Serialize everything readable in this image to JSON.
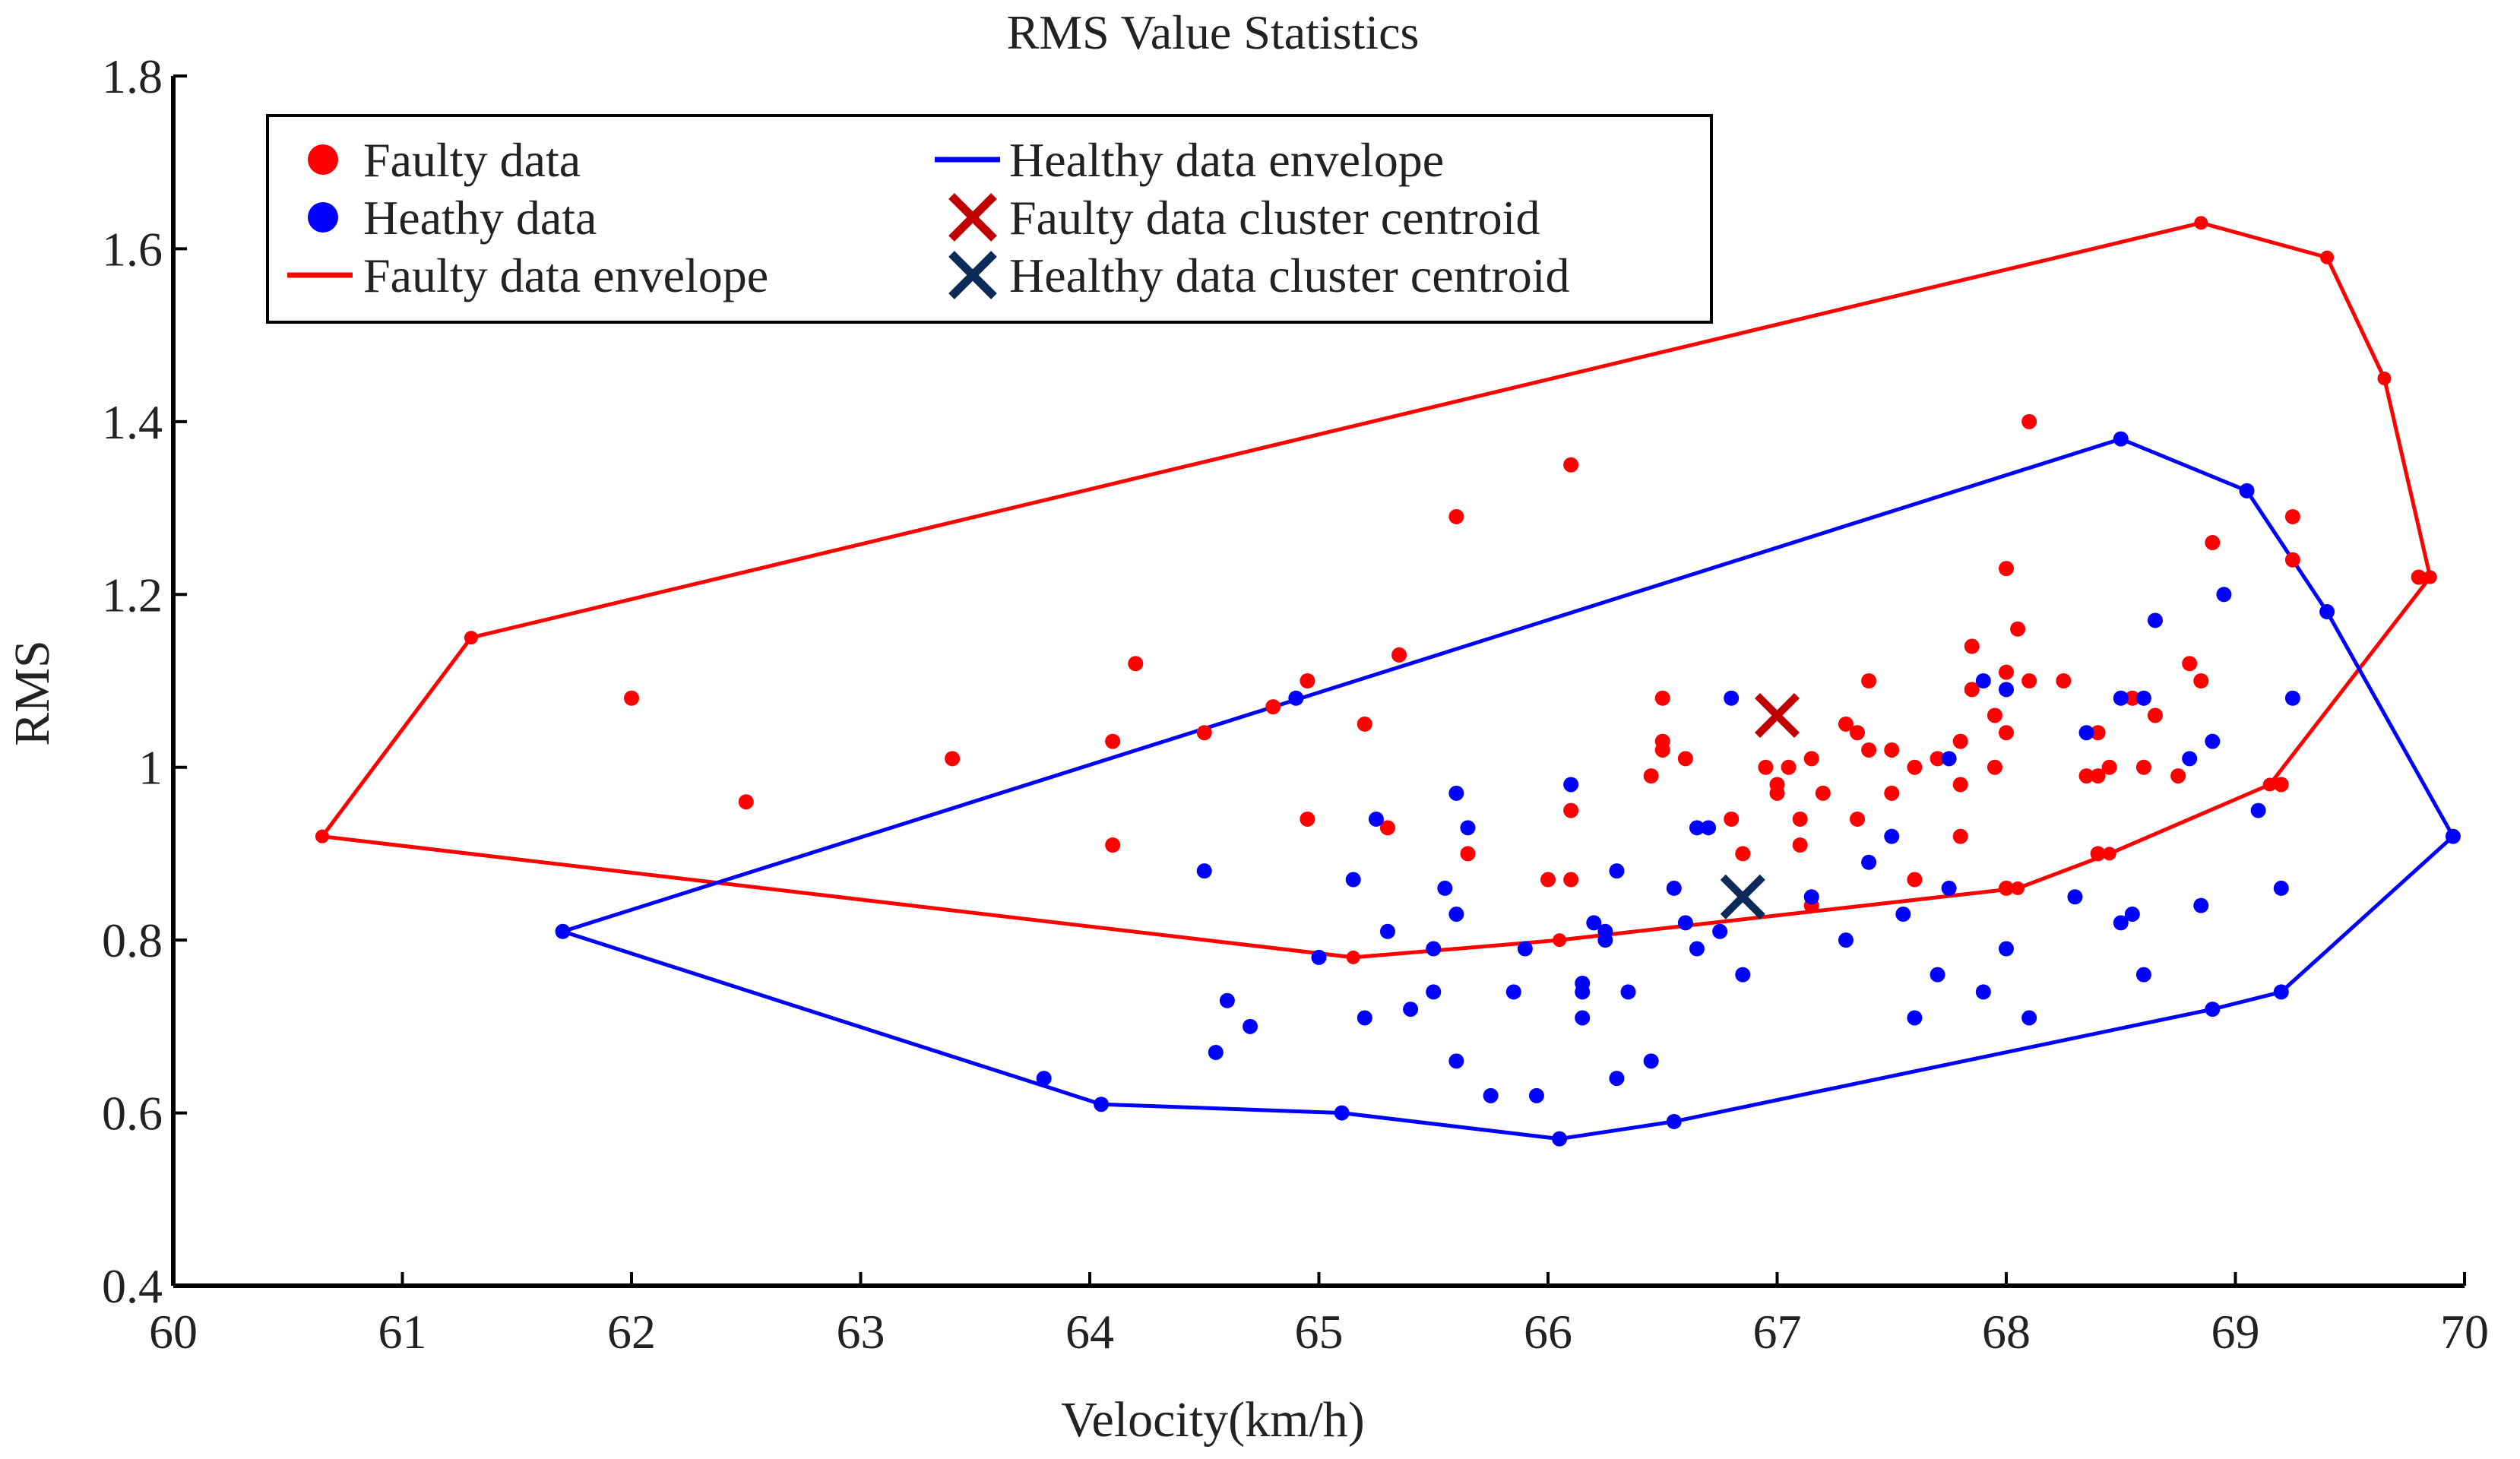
{
  "chart_data": {
    "type": "scatter",
    "title": "RMS Value Statistics",
    "xlabel": "Velocity(km/h)",
    "ylabel": "RMS",
    "xlim": [
      60,
      70
    ],
    "ylim": [
      0.4,
      1.8
    ],
    "xticks": [
      60,
      61,
      62,
      63,
      64,
      65,
      66,
      67,
      68,
      69,
      70
    ],
    "xtick_labels": [
      "60",
      "61",
      "62",
      "63",
      "64",
      "65",
      "66",
      "67",
      "68",
      "69",
      "70"
    ],
    "yticks": [
      0.4,
      0.6,
      0.8,
      1.0,
      1.2,
      1.4,
      1.6,
      1.8
    ],
    "ytick_labels": [
      "0.4",
      "0.6",
      "0.8",
      "1",
      "1.2",
      "1.4",
      "1.6",
      "1.8"
    ],
    "grid": false,
    "legend_position": "top-left",
    "legend": [
      {
        "label": "Faulty data",
        "kind": "dot",
        "color": "#ff0000"
      },
      {
        "label": "Heathy data",
        "kind": "dot",
        "color": "#0000ff"
      },
      {
        "label": "Faulty data envelope",
        "kind": "line",
        "color": "#ff0000"
      },
      {
        "label": "Healthy data envelope",
        "kind": "line",
        "color": "#0000ff"
      },
      {
        "label": "Faulty data cluster centroid",
        "kind": "cross",
        "color": "#c00000"
      },
      {
        "label": "Healthy data cluster centroid",
        "kind": "cross",
        "color": "#0d2a5a"
      }
    ],
    "series": [
      {
        "name": "Faulty data",
        "kind": "scatter",
        "color": "#ff0000",
        "points": [
          [
            62.0,
            1.08
          ],
          [
            62.5,
            0.96
          ],
          [
            63.4,
            1.01
          ],
          [
            64.1,
            1.03
          ],
          [
            64.1,
            0.91
          ],
          [
            64.2,
            1.12
          ],
          [
            64.5,
            1.04
          ],
          [
            64.8,
            1.07
          ],
          [
            64.95,
            1.1
          ],
          [
            64.95,
            0.94
          ],
          [
            65.2,
            1.05
          ],
          [
            65.3,
            0.93
          ],
          [
            65.35,
            1.13
          ],
          [
            65.6,
            1.29
          ],
          [
            65.65,
            0.9
          ],
          [
            66.1,
            1.35
          ],
          [
            66.1,
            0.87
          ],
          [
            66.1,
            0.95
          ],
          [
            66.45,
            0.99
          ],
          [
            66.5,
            1.02
          ],
          [
            66.5,
            1.08
          ],
          [
            66.5,
            1.03
          ],
          [
            66.6,
            1.01
          ],
          [
            66.8,
            0.94
          ],
          [
            66.85,
            0.9
          ],
          [
            66.95,
            1.0
          ],
          [
            67.0,
            0.98
          ],
          [
            67.0,
            0.97
          ],
          [
            67.05,
            1.0
          ],
          [
            67.1,
            0.94
          ],
          [
            67.1,
            0.91
          ],
          [
            67.15,
            1.01
          ],
          [
            67.15,
            0.84
          ],
          [
            67.2,
            0.97
          ],
          [
            67.3,
            1.05
          ],
          [
            67.35,
            1.04
          ],
          [
            67.4,
            1.1
          ],
          [
            67.4,
            1.02
          ],
          [
            67.35,
            0.94
          ],
          [
            67.5,
            1.02
          ],
          [
            67.5,
            0.97
          ],
          [
            67.6,
            0.87
          ],
          [
            67.6,
            1.0
          ],
          [
            67.7,
            1.01
          ],
          [
            67.8,
            0.98
          ],
          [
            67.8,
            1.03
          ],
          [
            67.8,
            0.92
          ],
          [
            67.85,
            1.09
          ],
          [
            67.85,
            1.14
          ],
          [
            67.95,
            1.06
          ],
          [
            67.95,
            1.0
          ],
          [
            68.0,
            1.04
          ],
          [
            68.0,
            1.23
          ],
          [
            68.0,
            1.11
          ],
          [
            68.05,
            1.16
          ],
          [
            68.1,
            1.4
          ],
          [
            68.1,
            1.1
          ],
          [
            68.25,
            1.1
          ],
          [
            68.35,
            0.99
          ],
          [
            68.4,
            1.04
          ],
          [
            68.4,
            0.99
          ],
          [
            68.45,
            1.0
          ],
          [
            68.55,
            1.08
          ],
          [
            68.6,
            1.0
          ],
          [
            68.65,
            1.06
          ],
          [
            68.75,
            0.99
          ],
          [
            68.8,
            1.12
          ],
          [
            68.85,
            1.1
          ],
          [
            68.9,
            1.26
          ],
          [
            69.2,
            0.98
          ],
          [
            69.25,
            1.24
          ],
          [
            69.25,
            1.29
          ],
          [
            69.8,
            1.22
          ],
          [
            66.0,
            0.87
          ],
          [
            68.0,
            0.86
          ],
          [
            68.4,
            0.9
          ]
        ]
      },
      {
        "name": "Heathy data",
        "kind": "scatter",
        "color": "#0000ff",
        "points": [
          [
            61.7,
            0.81
          ],
          [
            63.8,
            0.64
          ],
          [
            64.05,
            0.61
          ],
          [
            64.5,
            0.88
          ],
          [
            64.55,
            0.67
          ],
          [
            64.6,
            0.73
          ],
          [
            64.7,
            0.7
          ],
          [
            64.9,
            1.08
          ],
          [
            65.0,
            0.78
          ],
          [
            65.1,
            0.6
          ],
          [
            65.15,
            0.87
          ],
          [
            65.2,
            0.71
          ],
          [
            65.25,
            0.94
          ],
          [
            65.3,
            0.81
          ],
          [
            65.4,
            0.72
          ],
          [
            65.5,
            0.74
          ],
          [
            65.5,
            0.79
          ],
          [
            65.55,
            0.86
          ],
          [
            65.6,
            0.83
          ],
          [
            65.6,
            0.66
          ],
          [
            65.6,
            0.97
          ],
          [
            65.65,
            0.93
          ],
          [
            65.75,
            0.62
          ],
          [
            65.85,
            0.74
          ],
          [
            65.9,
            0.79
          ],
          [
            65.95,
            0.62
          ],
          [
            66.05,
            0.57
          ],
          [
            66.1,
            0.98
          ],
          [
            66.15,
            0.75
          ],
          [
            66.15,
            0.74
          ],
          [
            66.15,
            0.71
          ],
          [
            66.2,
            0.82
          ],
          [
            66.25,
            0.8
          ],
          [
            66.25,
            0.81
          ],
          [
            66.3,
            0.88
          ],
          [
            66.3,
            0.64
          ],
          [
            66.35,
            0.74
          ],
          [
            66.45,
            0.66
          ],
          [
            66.55,
            0.86
          ],
          [
            66.55,
            0.59
          ],
          [
            66.6,
            0.82
          ],
          [
            66.65,
            0.93
          ],
          [
            66.65,
            0.79
          ],
          [
            66.7,
            0.93
          ],
          [
            66.75,
            0.81
          ],
          [
            66.8,
            1.08
          ],
          [
            66.85,
            0.76
          ],
          [
            67.15,
            0.85
          ],
          [
            67.3,
            0.8
          ],
          [
            67.4,
            0.89
          ],
          [
            67.5,
            0.92
          ],
          [
            67.55,
            0.83
          ],
          [
            67.6,
            0.71
          ],
          [
            67.7,
            0.76
          ],
          [
            67.75,
            0.86
          ],
          [
            67.75,
            1.01
          ],
          [
            67.9,
            0.74
          ],
          [
            67.9,
            1.1
          ],
          [
            68.0,
            0.79
          ],
          [
            68.0,
            1.09
          ],
          [
            68.1,
            0.71
          ],
          [
            68.3,
            0.85
          ],
          [
            68.35,
            1.04
          ],
          [
            68.5,
            0.82
          ],
          [
            68.5,
            1.38
          ],
          [
            68.5,
            1.08
          ],
          [
            68.6,
            0.76
          ],
          [
            68.6,
            1.08
          ],
          [
            68.65,
            1.17
          ],
          [
            68.8,
            1.01
          ],
          [
            68.85,
            0.84
          ],
          [
            68.9,
            1.03
          ],
          [
            68.9,
            0.72
          ],
          [
            68.95,
            1.2
          ],
          [
            69.05,
            1.32
          ],
          [
            69.1,
            0.95
          ],
          [
            69.2,
            0.74
          ],
          [
            69.2,
            0.86
          ],
          [
            69.25,
            1.08
          ],
          [
            69.4,
            1.18
          ],
          [
            69.95,
            0.92
          ],
          [
            68.55,
            0.83
          ]
        ]
      },
      {
        "name": "Faulty data envelope",
        "kind": "line",
        "color": "#ff0000",
        "points": [
          [
            60.65,
            0.92
          ],
          [
            61.3,
            1.15
          ],
          [
            68.85,
            1.63
          ],
          [
            69.4,
            1.59
          ],
          [
            69.65,
            1.45
          ],
          [
            69.85,
            1.22
          ],
          [
            69.15,
            0.98
          ],
          [
            68.45,
            0.9
          ],
          [
            68.05,
            0.86
          ],
          [
            66.05,
            0.8
          ],
          [
            65.15,
            0.78
          ],
          [
            60.65,
            0.92
          ]
        ]
      },
      {
        "name": "Healthy data envelope",
        "kind": "line",
        "color": "#0000ff",
        "points": [
          [
            61.7,
            0.81
          ],
          [
            68.5,
            1.38
          ],
          [
            69.05,
            1.32
          ],
          [
            69.4,
            1.18
          ],
          [
            69.95,
            0.92
          ],
          [
            69.2,
            0.74
          ],
          [
            68.9,
            0.72
          ],
          [
            66.55,
            0.59
          ],
          [
            66.05,
            0.57
          ],
          [
            65.1,
            0.6
          ],
          [
            64.05,
            0.61
          ],
          [
            61.7,
            0.81
          ]
        ]
      },
      {
        "name": "Faulty data cluster centroid",
        "kind": "cross",
        "color": "#c00000",
        "points": [
          [
            67.0,
            1.06
          ]
        ]
      },
      {
        "name": "Healthy data cluster centroid",
        "kind": "cross",
        "color": "#0d2a5a",
        "points": [
          [
            66.85,
            0.85
          ]
        ]
      }
    ]
  }
}
